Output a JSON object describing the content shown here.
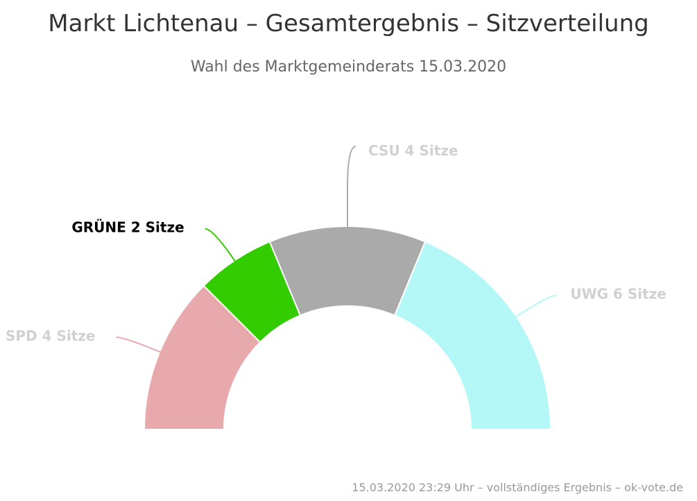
{
  "chart_data": {
    "type": "pie",
    "variant": "semicircle-donut",
    "title": "Markt Lichtenau – Gesamtergebnis – Sitzverteilung",
    "subtitle": "Wahl des Marktgemeinderats 15.03.2020",
    "slices": [
      {
        "name": "SPD",
        "value": 4,
        "unit_label": "Sitze",
        "color": "#e8a9ad",
        "highlighted": false
      },
      {
        "name": "GRÜNE",
        "value": 2,
        "unit_label": "Sitze",
        "color": "#33cc00",
        "highlighted": true
      },
      {
        "name": "CSU",
        "value": 4,
        "unit_label": "Sitze",
        "color": "#aaaaaa",
        "highlighted": false
      },
      {
        "name": "UWG",
        "value": 6,
        "unit_label": "Sitze",
        "color": "#b3f7f7",
        "highlighted": false
      }
    ],
    "total_seats": 16
  },
  "footer": {
    "credit": "15.03.2020 23:29 Uhr – vollständiges Ergebnis – ok-vote.de"
  }
}
